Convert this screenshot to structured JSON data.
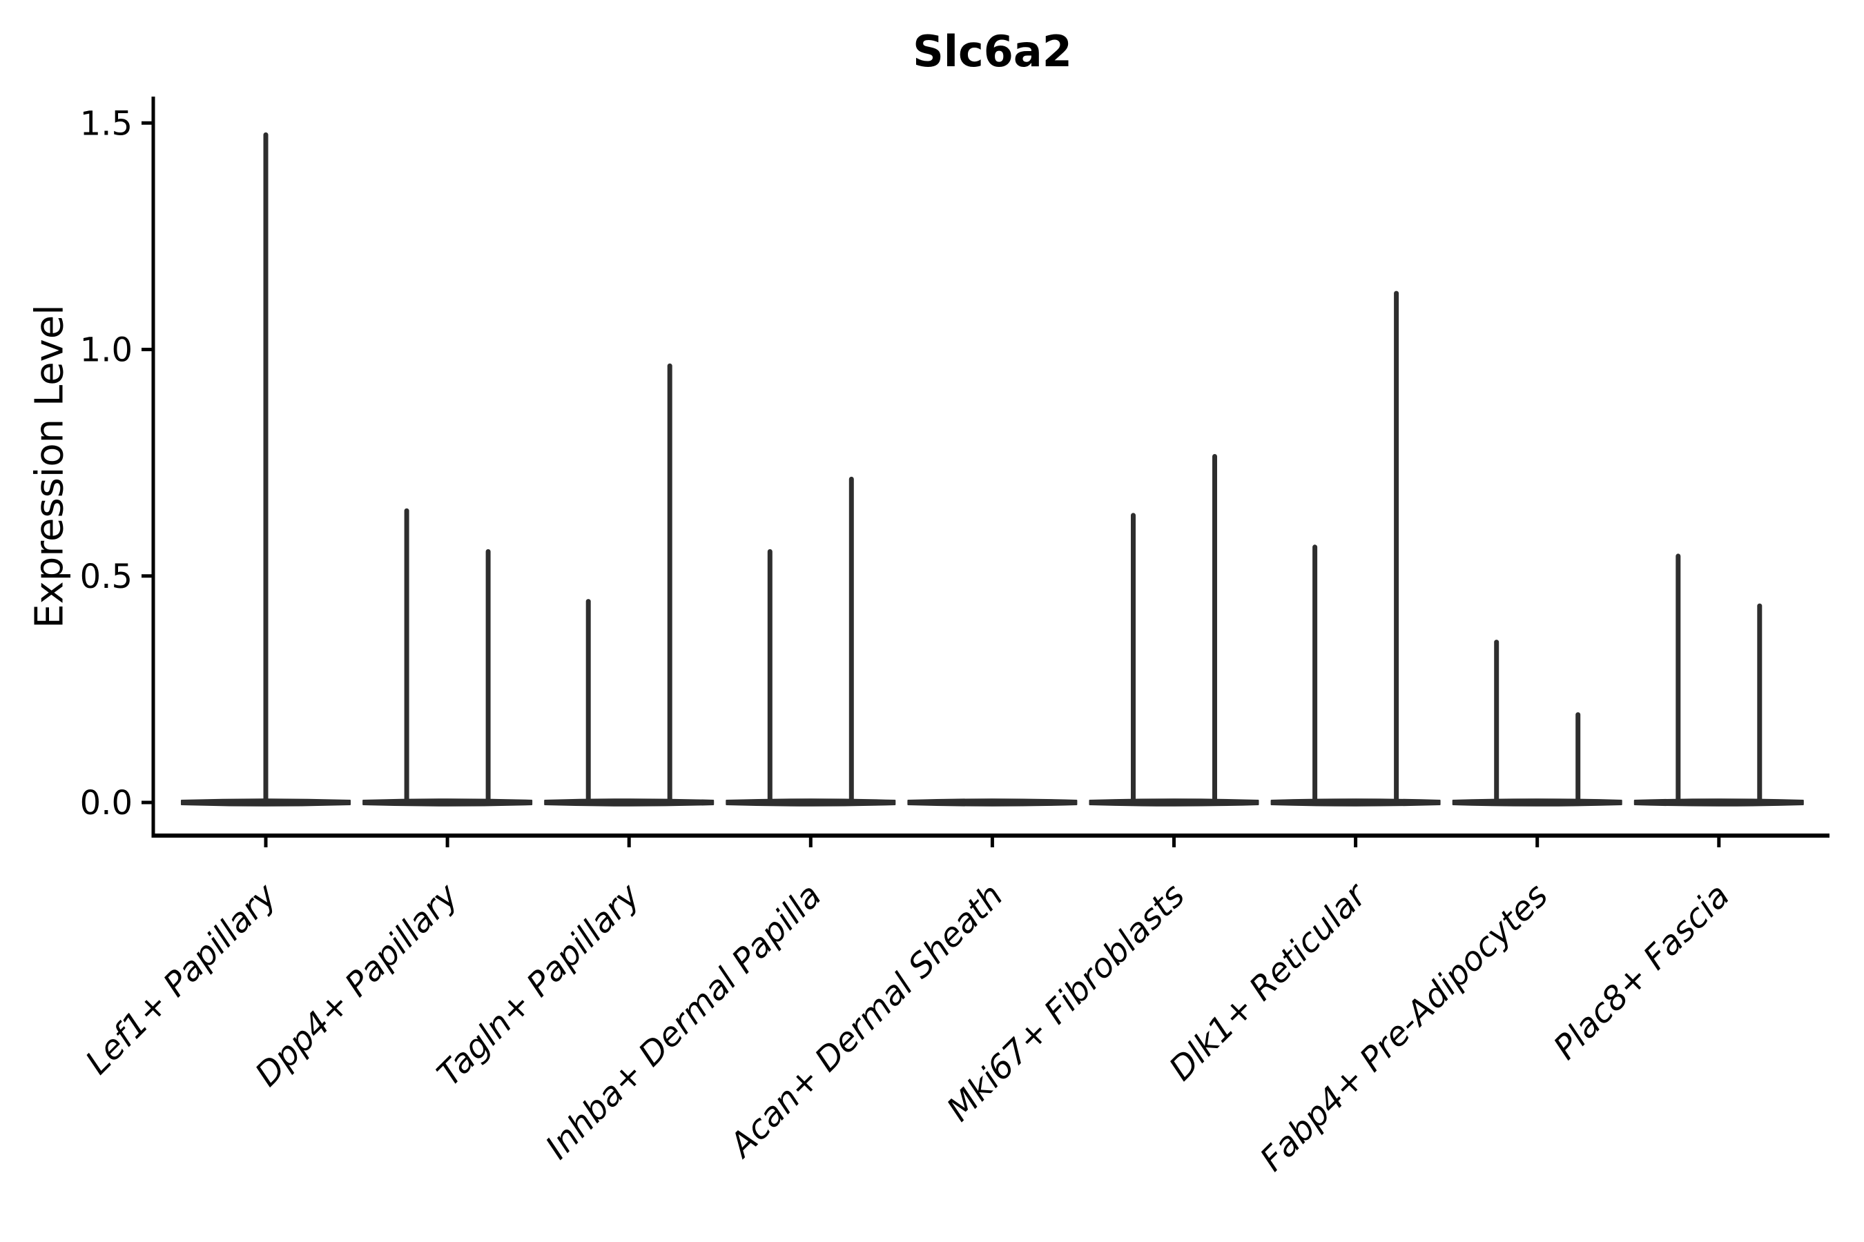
{
  "figure": {
    "title": "Slc6a2",
    "ylabel": "Expression Level"
  },
  "chart_data": {
    "type": "violin",
    "title": "Slc6a2",
    "xlabel": "",
    "ylabel": "Expression Level",
    "ylim": [
      0.0,
      1.5
    ],
    "yticks": [
      "0.0",
      "0.5",
      "1.0",
      "1.5"
    ],
    "ytick_values": [
      0.0,
      0.5,
      1.0,
      1.5
    ],
    "grid": false,
    "legend": null,
    "background": "#ffffff",
    "colors": {
      "violin": "#2e2e2e",
      "axis": "#000000",
      "text": "#000000"
    },
    "categories": [
      "Lef1+ Papillary",
      "Dpp4+ Papillary",
      "Tagln+ Papillary",
      "Inhba+ Dermal Papilla",
      "Acan+ Dermal Sheath",
      "Mki67+ Fibroblasts",
      "Dlk1+ Reticular",
      "Fabp4+ Pre-Adipocytes",
      "Plac8+ Fascia"
    ],
    "violins": [
      {
        "category": "Lef1+ Papillary",
        "baseline_value": 0.0,
        "needles": [
          {
            "side": "center",
            "max": 1.48
          }
        ]
      },
      {
        "category": "Dpp4+ Papillary",
        "baseline_value": 0.0,
        "needles": [
          {
            "side": "left",
            "max": 0.65
          },
          {
            "side": "right",
            "max": 0.56
          }
        ]
      },
      {
        "category": "Tagln+ Papillary",
        "baseline_value": 0.0,
        "needles": [
          {
            "side": "left",
            "max": 0.45
          },
          {
            "side": "right",
            "max": 0.97
          }
        ]
      },
      {
        "category": "Inhba+ Dermal Papilla",
        "baseline_value": 0.0,
        "needles": [
          {
            "side": "left",
            "max": 0.56
          },
          {
            "side": "right",
            "max": 0.72
          }
        ]
      },
      {
        "category": "Acan+ Dermal Sheath",
        "baseline_value": 0.0,
        "needles": []
      },
      {
        "category": "Mki67+ Fibroblasts",
        "baseline_value": 0.0,
        "needles": [
          {
            "side": "left",
            "max": 0.64
          },
          {
            "side": "right",
            "max": 0.77
          }
        ]
      },
      {
        "category": "Dlk1+ Reticular",
        "baseline_value": 0.0,
        "needles": [
          {
            "side": "left",
            "max": 0.57
          },
          {
            "side": "right",
            "max": 1.13
          }
        ]
      },
      {
        "category": "Fabp4+ Pre-Adipocytes",
        "baseline_value": 0.0,
        "needles": [
          {
            "side": "left",
            "max": 0.36
          },
          {
            "side": "right",
            "max": 0.2
          }
        ]
      },
      {
        "category": "Plac8+ Fascia",
        "baseline_value": 0.0,
        "needles": [
          {
            "side": "left",
            "max": 0.55
          },
          {
            "side": "right",
            "max": 0.44
          }
        ]
      }
    ]
  }
}
